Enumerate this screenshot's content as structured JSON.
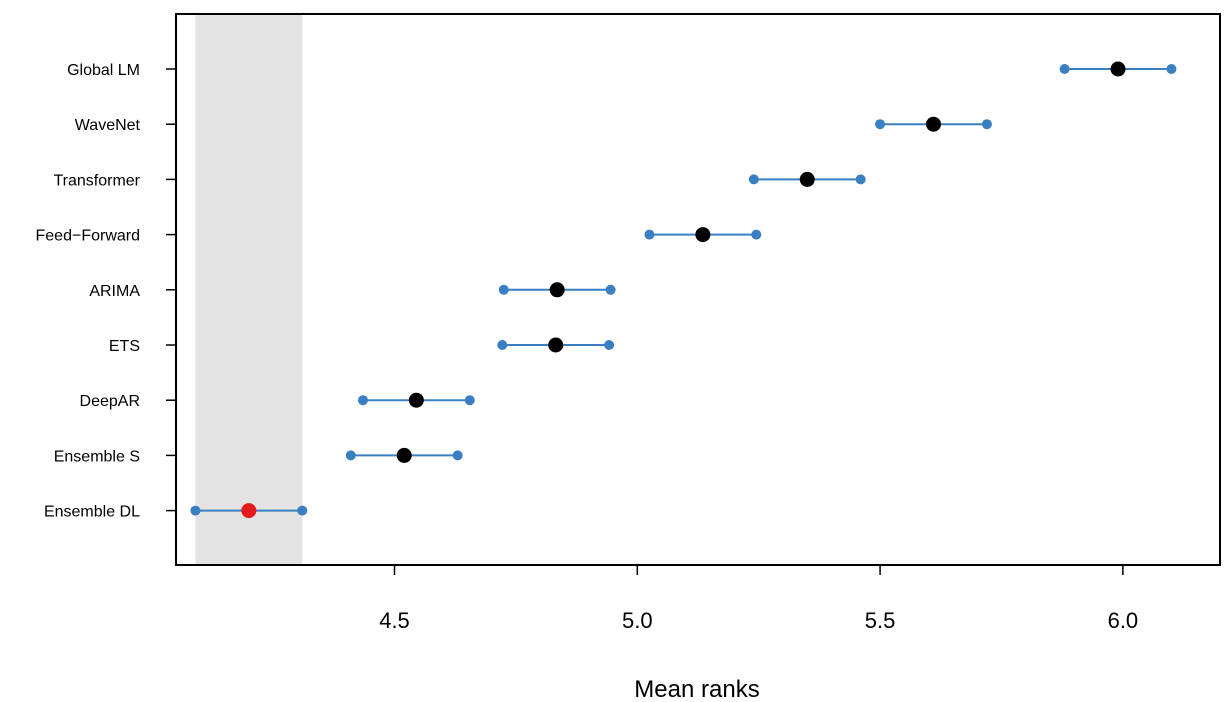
{
  "chart_data": {
    "type": "scatter",
    "xlabel": "Mean ranks",
    "ylabel": "",
    "title": "",
    "xlim": [
      4.05,
      6.2
    ],
    "x_ticks": [
      {
        "value": 4.5,
        "label": "4.5"
      },
      {
        "value": 5.0,
        "label": "5.0"
      },
      {
        "value": 5.5,
        "label": "5.5"
      },
      {
        "value": 6.0,
        "label": "6.0"
      }
    ],
    "critical_region": [
      4.09,
      4.31
    ],
    "grid": false,
    "methods": [
      {
        "label": "Global LM",
        "mean": 5.99,
        "lower": 5.88,
        "upper": 6.1,
        "best": false
      },
      {
        "label": "WaveNet",
        "mean": 5.61,
        "lower": 5.5,
        "upper": 5.72,
        "best": false
      },
      {
        "label": "Transformer",
        "mean": 5.35,
        "lower": 5.24,
        "upper": 5.46,
        "best": false
      },
      {
        "label": "Feed−Forward",
        "mean": 5.135,
        "lower": 5.025,
        "upper": 5.245,
        "best": false
      },
      {
        "label": "ARIMA",
        "mean": 4.835,
        "lower": 4.725,
        "upper": 4.945,
        "best": false
      },
      {
        "label": "ETS",
        "mean": 4.832,
        "lower": 4.722,
        "upper": 4.942,
        "best": false
      },
      {
        "label": "DeepAR",
        "mean": 4.545,
        "lower": 4.435,
        "upper": 4.655,
        "best": false
      },
      {
        "label": "Ensemble S",
        "mean": 4.52,
        "lower": 4.41,
        "upper": 4.63,
        "best": false
      },
      {
        "label": "Ensemble DL",
        "mean": 4.2,
        "lower": 4.09,
        "upper": 4.31,
        "best": true
      }
    ],
    "colors": {
      "interval": "#3a7fc1",
      "mean": "#000000",
      "best": "#e41a1c",
      "region": "#e3e3e3"
    }
  }
}
